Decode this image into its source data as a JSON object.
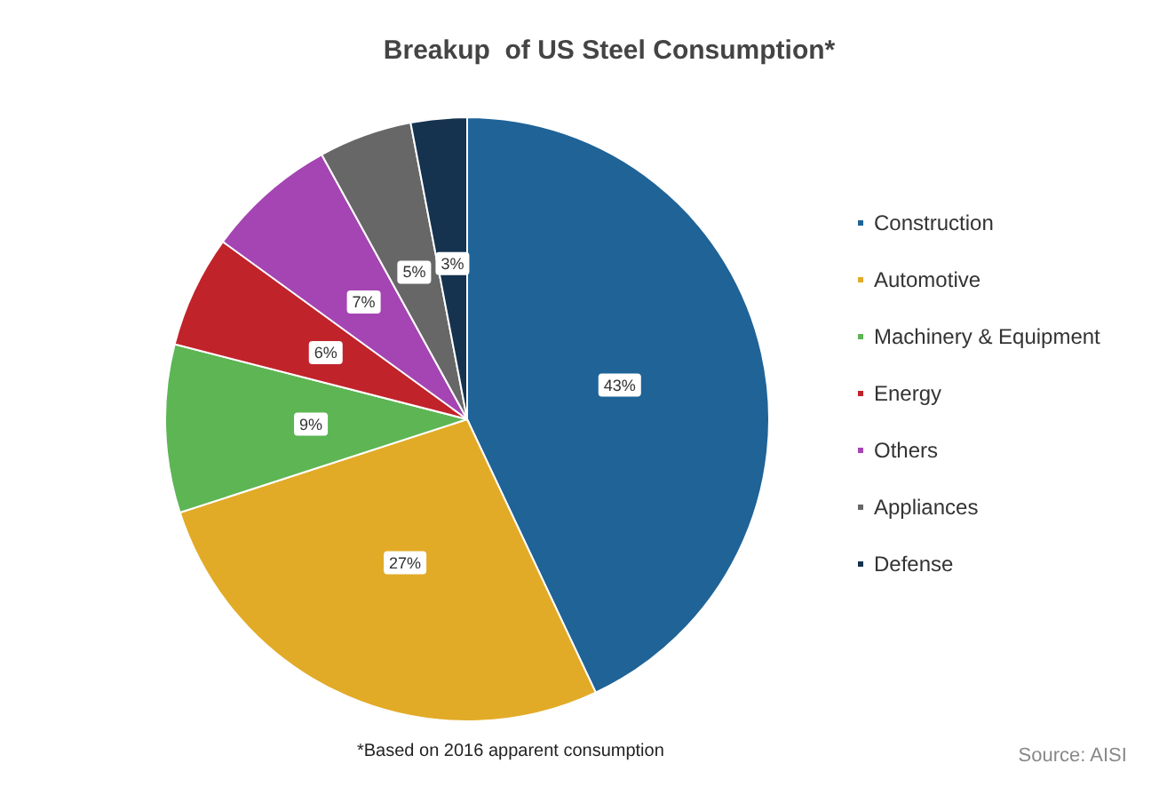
{
  "chart_data": {
    "type": "pie",
    "title": "Breakup  of US Steel Consumption*",
    "categories": [
      "Construction",
      "Automotive",
      "Machinery & Equipment",
      "Energy",
      "Others",
      "Appliances",
      "Defense"
    ],
    "values": [
      43,
      27,
      9,
      6,
      7,
      5,
      3
    ],
    "value_labels": [
      "43%",
      "27%",
      "9%",
      "6%",
      "7%",
      "5%",
      "3%"
    ],
    "colors": [
      "#1f6397",
      "#e2ab27",
      "#5db554",
      "#c1232b",
      "#a545b3",
      "#676767",
      "#15324f"
    ],
    "legend": "right",
    "annotations": [
      "*Based on 2016 apparent consumption",
      "Source: AISI"
    ]
  }
}
